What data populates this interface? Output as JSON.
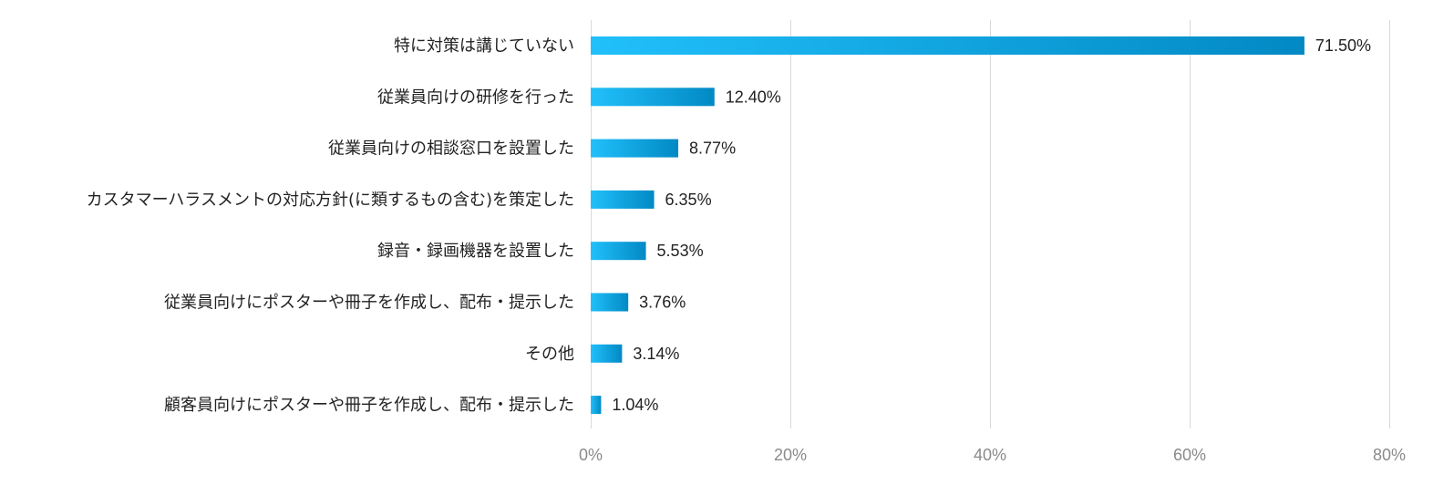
{
  "chart_data": {
    "type": "bar",
    "orientation": "horizontal",
    "categories": [
      "特に対策は講じていない",
      "従業員向けの研修を行った",
      "従業員向けの相談窓口を設置した",
      "カスタマーハラスメントの対応方針(に類するもの含む)を策定した",
      "録音・録画機器を設置した",
      "従業員向けにポスターや冊子を作成し、配布・提示した",
      "その他",
      "顧客員向けにポスターや冊子を作成し、配布・提示した"
    ],
    "values": [
      71.5,
      12.4,
      8.77,
      6.35,
      5.53,
      3.76,
      3.14,
      1.04
    ],
    "value_labels": [
      "71.50%",
      "12.40%",
      "8.77%",
      "6.35%",
      "5.53%",
      "3.76%",
      "3.14%",
      "1.04%"
    ],
    "xlim": [
      0,
      80
    ],
    "ticks": [
      0,
      20,
      40,
      60,
      80
    ],
    "tick_labels": [
      "0%",
      "20%",
      "40%",
      "60%",
      "80%"
    ],
    "grid": true,
    "colors": {
      "bar_start": "#21c0fb",
      "bar_end": "#0289c4",
      "grid": "#d9d9d9"
    }
  }
}
